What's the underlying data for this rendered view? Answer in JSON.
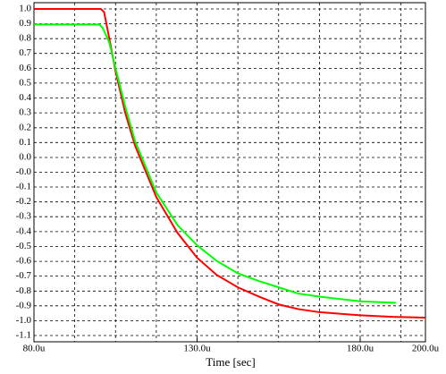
{
  "chart_data": {
    "type": "line",
    "x_label": "Time [sec]",
    "xlim": [
      80,
      200
    ],
    "xticks": [
      {
        "value": 80,
        "label": "80.0u"
      },
      {
        "value": 130,
        "label": "130.0u"
      },
      {
        "value": 180,
        "label": "180.0u"
      },
      {
        "value": 200,
        "label": "200.0u"
      }
    ],
    "xgrid": [
      92.5,
      105,
      117.5,
      130,
      142.5,
      155,
      167.5,
      180,
      192.5
    ],
    "ylim": [
      -1.1,
      1.0
    ],
    "yticks": [
      {
        "value": 1.0,
        "label": "1.0"
      },
      {
        "value": 0.905,
        "label": "0.9"
      },
      {
        "value": 0.809,
        "label": "0.8"
      },
      {
        "value": 0.714,
        "label": "0.7"
      },
      {
        "value": 0.618,
        "label": "0.6"
      },
      {
        "value": 0.523,
        "label": "0.5"
      },
      {
        "value": 0.427,
        "label": "0.4"
      },
      {
        "value": 0.332,
        "label": "0.3"
      },
      {
        "value": 0.236,
        "label": "0.2"
      },
      {
        "value": 0.141,
        "label": "0.1"
      },
      {
        "value": 0.045,
        "label": "0.0"
      },
      {
        "value": -0.05,
        "label": "-0.0"
      },
      {
        "value": -0.145,
        "label": "-0.1"
      },
      {
        "value": -0.241,
        "label": "-0.2"
      },
      {
        "value": -0.336,
        "label": "-0.3"
      },
      {
        "value": -0.432,
        "label": "-0.4"
      },
      {
        "value": -0.527,
        "label": "-0.5"
      },
      {
        "value": -0.623,
        "label": "-0.6"
      },
      {
        "value": -0.718,
        "label": "-0.7"
      },
      {
        "value": -0.814,
        "label": "-0.8"
      },
      {
        "value": -0.909,
        "label": "-0.9"
      },
      {
        "value": -1.005,
        "label": "-1.0"
      },
      {
        "value": -1.1,
        "label": "-1.1"
      }
    ],
    "grid": true,
    "series": [
      {
        "color": "#ff0000",
        "x": [
          80,
          100.5,
          101.5,
          103,
          105,
          108,
          111,
          117.5,
          124,
          130,
          136,
          142.5,
          149,
          155,
          161,
          167.5,
          180,
          190,
          200
        ],
        "values": [
          1,
          1,
          0.98,
          0.82,
          0.6,
          0.33,
          0.12,
          -0.21,
          -0.44,
          -0.6,
          -0.71,
          -0.79,
          -0.85,
          -0.9,
          -0.93,
          -0.95,
          -0.97,
          -0.98,
          -0.985
        ]
      },
      {
        "color": "#00ff00",
        "x": [
          80,
          100,
          101,
          103,
          105,
          108,
          111,
          117.5,
          124,
          130,
          136,
          142.5,
          149,
          155,
          161,
          167.5,
          180,
          191
        ],
        "values": [
          0.9,
          0.9,
          0.88,
          0.79,
          0.62,
          0.37,
          0.15,
          -0.18,
          -0.39,
          -0.52,
          -0.62,
          -0.7,
          -0.75,
          -0.79,
          -0.83,
          -0.85,
          -0.88,
          -0.89
        ]
      }
    ]
  }
}
